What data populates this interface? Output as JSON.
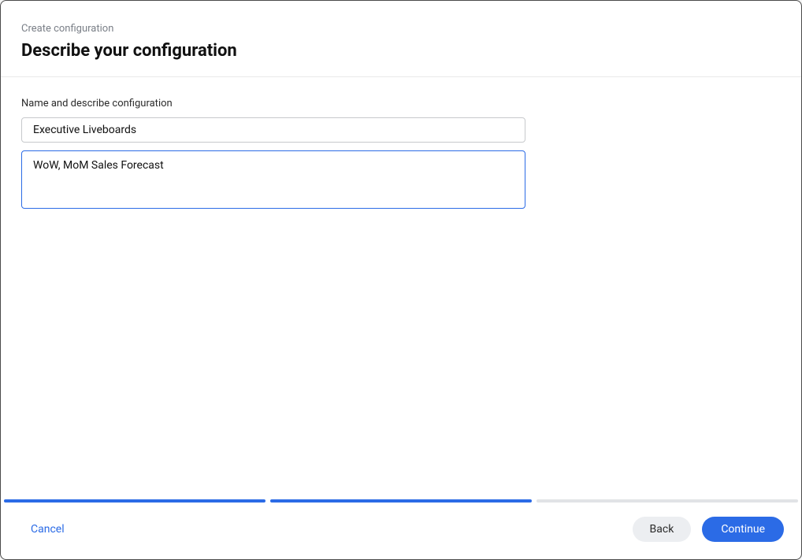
{
  "header": {
    "breadcrumb": "Create configuration",
    "title": "Describe your configuration"
  },
  "form": {
    "section_label": "Name and describe configuration",
    "name_value": "Executive Liveboards",
    "description_value": "WoW, MoM Sales Forecast"
  },
  "progress": {
    "segments": 3,
    "active_segments": 2,
    "active_color": "#2b6be6",
    "inactive_color": "#e1e3e6"
  },
  "footer": {
    "cancel_label": "Cancel",
    "back_label": "Back",
    "continue_label": "Continue"
  },
  "colors": {
    "primary": "#2b6be6",
    "text_primary": "#111111",
    "text_secondary": "#7a7f87",
    "border": "#c7c9cc",
    "button_secondary_bg": "#eceef1",
    "background": "#ffffff"
  }
}
